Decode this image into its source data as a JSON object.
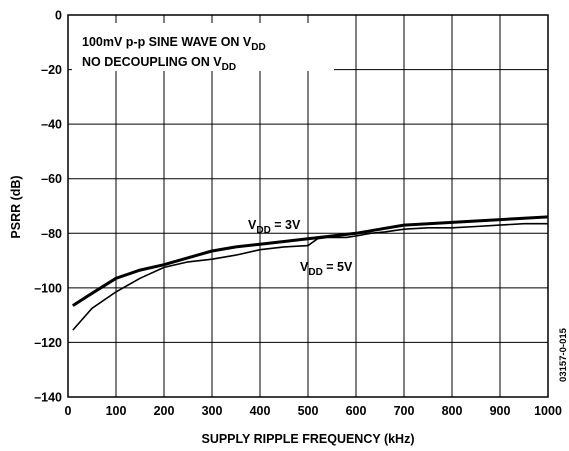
{
  "chart_data": {
    "type": "line",
    "xlabel": "SUPPLY RIPPLE FREQUENCY (kHz)",
    "ylabel": "PSRR (dB)",
    "xlim": [
      0,
      1000
    ],
    "ylim": [
      -140,
      0
    ],
    "xticks": [
      0,
      100,
      200,
      300,
      400,
      500,
      600,
      700,
      800,
      900,
      1000
    ],
    "yticks": [
      0,
      -20,
      -40,
      -60,
      -80,
      -100,
      -120,
      -140
    ],
    "grid": true,
    "annotation": {
      "line1": {
        "main": "100mV p-p SINE WAVE ON V",
        "sub": "DD"
      },
      "line2": {
        "main": "NO DECOUPLING ON V",
        "sub": "DD"
      }
    },
    "figure_code": "03157-0-015",
    "series": [
      {
        "name": "VDD = 3V",
        "label": {
          "pre": "V",
          "sub": "DD",
          "post": " = 3V"
        },
        "x": [
          10,
          50,
          100,
          150,
          200,
          250,
          300,
          350,
          400,
          450,
          500,
          550,
          600,
          650,
          700,
          750,
          800,
          850,
          900,
          950,
          1000
        ],
        "y": [
          -106.5,
          -102,
          -96.5,
          -93.5,
          -91.5,
          -89,
          -86.5,
          -85,
          -84,
          -83,
          -82,
          -81,
          -80,
          -78.5,
          -77,
          -76.5,
          -76,
          -75.5,
          -75,
          -74.5,
          -74
        ]
      },
      {
        "name": "VDD = 5V",
        "label": {
          "pre": "V",
          "sub": "DD",
          "post": " = 5V"
        },
        "x": [
          10,
          50,
          100,
          150,
          200,
          250,
          300,
          350,
          400,
          450,
          500,
          520,
          540,
          580,
          600,
          630,
          660,
          700,
          750,
          800,
          850,
          900,
          950,
          1000
        ],
        "y": [
          -115.5,
          -107.5,
          -101.5,
          -96.5,
          -92.5,
          -90.5,
          -89.5,
          -88,
          -86,
          -85,
          -84.5,
          -82,
          -81.5,
          -81.5,
          -81,
          -80,
          -79.5,
          -78.5,
          -78,
          -78,
          -77.5,
          -77,
          -76.5,
          -76.5
        ]
      }
    ]
  }
}
